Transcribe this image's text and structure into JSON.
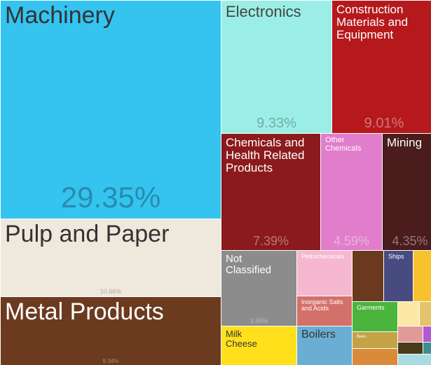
{
  "chart_data": {
    "type": "treemap",
    "categories": [
      "Machinery",
      "Pulp and Paper",
      "Metal Products",
      "Electronics",
      "Construction Materials and Equipment",
      "Chemicals and Health Related Products",
      "Other Chemicals",
      "Mining",
      "Not Classified",
      "Petrochemicals",
      "Inorganic Salts and Acids",
      "Milk Cheese",
      "Boilers",
      null,
      "Ships",
      null,
      "Garments",
      "Beer...",
      null,
      null,
      null,
      null,
      null,
      null,
      null,
      null
    ],
    "values": [
      29.35,
      10.66,
      9.34,
      9.33,
      9.01,
      7.39,
      4.59,
      4.35,
      3.59,
      1.53,
      1.01,
      1.8,
      1.32,
      0.98,
      0.92,
      0.57,
      0.83,
      0.47,
      0.5,
      0.33,
      0.18,
      0.25,
      0.1,
      0.18,
      0.06,
      0.23
    ],
    "value_labels": [
      "29.35%",
      "10.66%",
      "9.34%",
      "9.33%",
      "9.01%",
      "7.39%",
      "4.59%",
      "4.35%",
      "3.59%",
      null,
      null,
      null,
      null,
      null,
      null,
      null,
      null,
      null,
      null,
      null,
      null,
      null,
      null,
      null,
      null,
      null
    ],
    "colors": [
      "#35c3f0",
      "#eee8dd",
      "#6b3a1f",
      "#9beee6",
      "#b5191c",
      "#8b1a1c",
      "#e07ecb",
      "#4a1c1c",
      "#8c8c8c",
      "#f5b8cf",
      "#d4706a",
      "#ffe01a",
      "#6aaed3",
      "#6b3a1e",
      "#474b80",
      "#f7c22c",
      "#4bb43c",
      "#c3a345",
      "#d98b3a",
      "#fde7a6",
      "#e3c46b",
      "#e09a9a",
      "#b25ad0",
      "#4a3a1a",
      "#3a8f8f",
      "#aadbe2"
    ]
  }
}
